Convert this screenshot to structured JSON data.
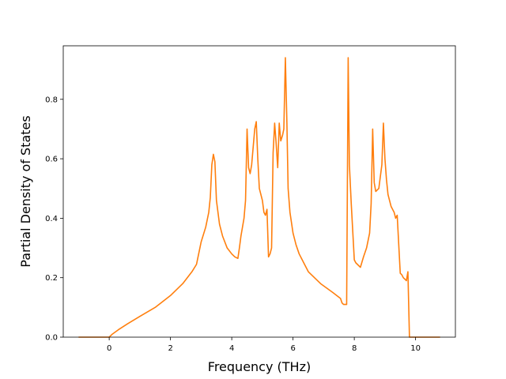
{
  "chart_data": {
    "type": "line",
    "title": "",
    "xlabel": "Frequency (THz)",
    "ylabel": "Partial Density of States",
    "xlim": [
      -1.5,
      11.3
    ],
    "ylim": [
      0,
      0.98
    ],
    "xticks": [
      0,
      2,
      4,
      6,
      8,
      10
    ],
    "yticks": [
      0.0,
      0.2,
      0.4,
      0.6,
      0.8
    ],
    "xtick_labels": [
      "0",
      "2",
      "4",
      "6",
      "8",
      "10"
    ],
    "ytick_labels": [
      "0.0",
      "0.2",
      "0.4",
      "0.6",
      "0.8"
    ],
    "grid": false,
    "legend": "none",
    "series": [
      {
        "color": "#ff7f0e",
        "x": [
          -1.0,
          0.0,
          0.1,
          0.3,
          0.6,
          1.0,
          1.5,
          2.0,
          2.4,
          2.7,
          2.85,
          2.9,
          3.0,
          3.15,
          3.25,
          3.3,
          3.35,
          3.4,
          3.45,
          3.5,
          3.6,
          3.7,
          3.85,
          4.0,
          4.1,
          4.2,
          4.25,
          4.3,
          4.4,
          4.45,
          4.5,
          4.55,
          4.6,
          4.65,
          4.7,
          4.75,
          4.8,
          4.85,
          4.9,
          5.0,
          5.05,
          5.1,
          5.15,
          5.2,
          5.25,
          5.3,
          5.35,
          5.4,
          5.45,
          5.5,
          5.55,
          5.6,
          5.63,
          5.66,
          5.7,
          5.75,
          5.8,
          5.84,
          5.9,
          6.0,
          6.1,
          6.2,
          6.35,
          6.5,
          6.7,
          6.9,
          7.1,
          7.3,
          7.55,
          7.6,
          7.65,
          7.7,
          7.75,
          7.8,
          7.84,
          7.9,
          8.0,
          8.05,
          8.1,
          8.2,
          8.3,
          8.4,
          8.5,
          8.55,
          8.6,
          8.65,
          8.7,
          8.8,
          8.9,
          8.95,
          9.0,
          9.05,
          9.1,
          9.2,
          9.3,
          9.35,
          9.4,
          9.5,
          9.55,
          9.6,
          9.65,
          9.7,
          9.75,
          9.8,
          9.85,
          9.9,
          10.8
        ],
        "y": [
          0.0,
          0.0,
          0.01,
          0.025,
          0.045,
          0.07,
          0.1,
          0.14,
          0.18,
          0.22,
          0.245,
          0.27,
          0.32,
          0.37,
          0.42,
          0.47,
          0.58,
          0.615,
          0.59,
          0.46,
          0.38,
          0.34,
          0.3,
          0.28,
          0.27,
          0.265,
          0.3,
          0.34,
          0.4,
          0.46,
          0.7,
          0.57,
          0.55,
          0.58,
          0.64,
          0.7,
          0.725,
          0.6,
          0.5,
          0.46,
          0.42,
          0.41,
          0.43,
          0.27,
          0.28,
          0.3,
          0.62,
          0.72,
          0.65,
          0.57,
          0.72,
          0.66,
          0.67,
          0.68,
          0.7,
          0.94,
          0.72,
          0.5,
          0.42,
          0.35,
          0.31,
          0.28,
          0.25,
          0.22,
          0.2,
          0.18,
          0.165,
          0.15,
          0.13,
          0.115,
          0.11,
          0.11,
          0.11,
          0.94,
          0.58,
          0.45,
          0.26,
          0.25,
          0.245,
          0.235,
          0.27,
          0.3,
          0.35,
          0.45,
          0.7,
          0.52,
          0.49,
          0.5,
          0.58,
          0.72,
          0.6,
          0.53,
          0.48,
          0.44,
          0.42,
          0.4,
          0.41,
          0.215,
          0.21,
          0.2,
          0.195,
          0.19,
          0.22,
          0.0,
          0.0,
          0.0,
          0.0
        ]
      }
    ]
  }
}
